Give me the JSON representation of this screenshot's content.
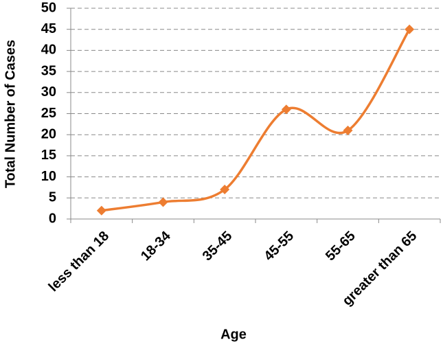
{
  "chart_data": {
    "type": "line",
    "x_label": "Age",
    "y_label": "Total Number of Cases",
    "categories": [
      "less than 18",
      "18-34",
      "35-45",
      "45-55",
      "55-65",
      "greater than 65"
    ],
    "values": [
      2,
      4,
      7,
      26,
      21,
      45
    ],
    "color": "#ed7d31",
    "ylim": [
      0,
      50
    ],
    "yticks": [
      0,
      5,
      10,
      15,
      20,
      25,
      30,
      35,
      40,
      45,
      50
    ],
    "grid": true,
    "smooth": true
  }
}
